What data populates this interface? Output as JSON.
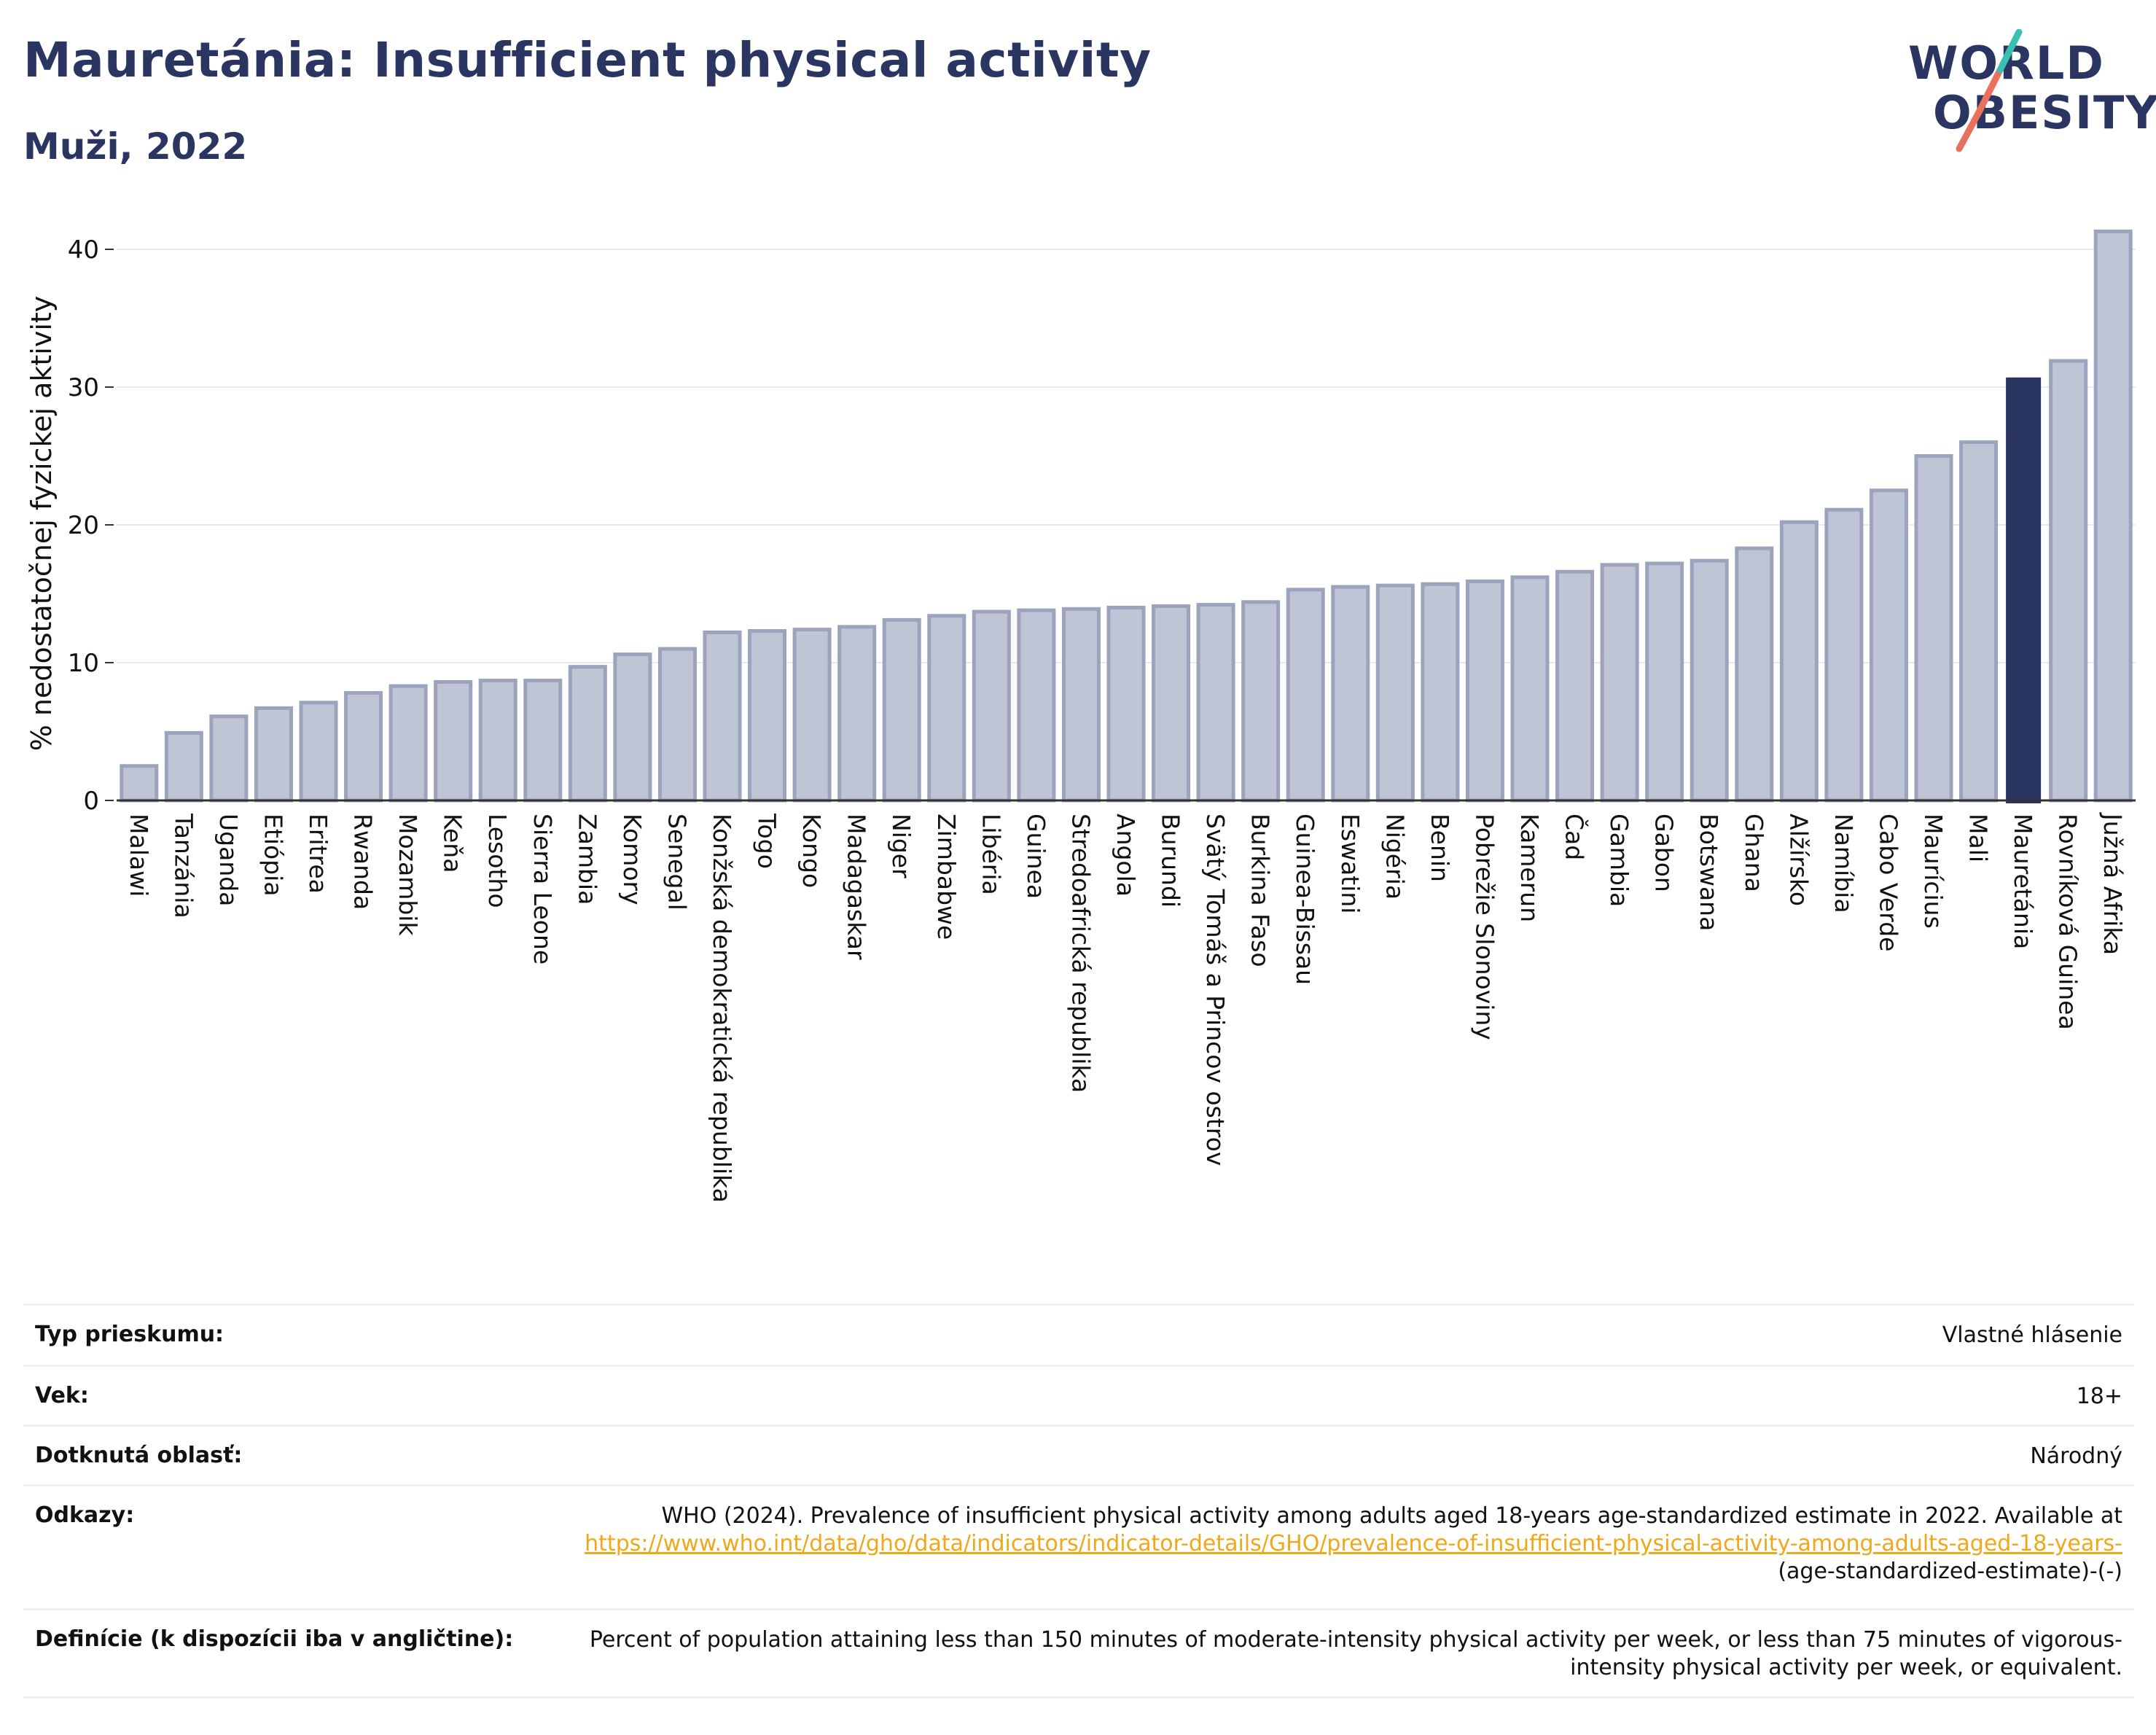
{
  "title": "Mauretánia: Insufficient physical activity",
  "subtitle": "Muži, 2022",
  "logo": {
    "line1": "WORLD",
    "line2": "OBESITY"
  },
  "colors": {
    "highlight": "#2b3561",
    "bar": "#c0c5d6",
    "bar_stroke": "#9ba3bd",
    "title": "#2b3561",
    "link": "#f0a81a"
  },
  "chart_data": {
    "type": "bar",
    "ylabel": "% nedostatočnej fyzickej aktivity",
    "ylim": [
      0,
      42
    ],
    "yticks": [
      0,
      10,
      20,
      30,
      40
    ],
    "grid": true,
    "highlight": "Mauretánia",
    "categories": [
      "Malawi",
      "Tanzánia",
      "Uganda",
      "Etiópia",
      "Eritrea",
      "Rwanda",
      "Mozambik",
      "Keňa",
      "Lesotho",
      "Sierra Leone",
      "Zambia",
      "Komory",
      "Senegal",
      "Konžská demokratická republika",
      "Togo",
      "Kongo",
      "Madagaskar",
      "Niger",
      "Zimbabwe",
      "Libéria",
      "Guinea",
      "Stredoafrická republika",
      "Angola",
      "Burundi",
      "Svätý Tomáš a Princov ostrov",
      "Burkina Faso",
      "Guinea-Bissau",
      "Eswatini",
      "Nigéria",
      "Benin",
      "Pobrežie Slonoviny",
      "Kamerun",
      "Čad",
      "Gambia",
      "Gabon",
      "Botswana",
      "Ghana",
      "Alžírsko",
      "Namíbia",
      "Cabo Verde",
      "Maurícius",
      "Mali",
      "Mauretánia",
      "Rovníková Guinea",
      "Južná Afrika"
    ],
    "values": [
      2.5,
      4.9,
      6.1,
      6.7,
      7.1,
      7.8,
      8.3,
      8.6,
      8.7,
      8.7,
      9.7,
      10.6,
      11.0,
      12.2,
      12.3,
      12.4,
      12.6,
      13.1,
      13.4,
      13.7,
      13.8,
      13.9,
      14.0,
      14.1,
      14.2,
      14.4,
      15.3,
      15.5,
      15.6,
      15.7,
      15.9,
      16.2,
      16.6,
      17.1,
      17.2,
      17.4,
      18.3,
      20.2,
      21.1,
      22.5,
      25.0,
      26.0,
      30.7,
      31.9,
      41.3
    ]
  },
  "table": {
    "survey_type": {
      "label": "Typ prieskumu:",
      "value": "Vlastné hlásenie"
    },
    "age": {
      "label": "Vek:",
      "value": "18+"
    },
    "area": {
      "label": "Dotknutá oblasť:",
      "value": "Národný"
    },
    "references": {
      "label": "Odkazy:",
      "text": "WHO (2024). Prevalence of insufficient physical activity among adults aged 18-years age-standardized estimate in 2022. Available at",
      "link": "https://www.who.int/data/gho/data/indicators/indicator-details/GHO/prevalence-of-insufficient-physical-activity-among-adults-aged-18-years-",
      "suffix": "(age-standardized-estimate)-(-)"
    },
    "definition": {
      "label": "Definície (k dispozícii iba v angličtine):",
      "value": "Percent of population attaining less than 150 minutes of moderate-intensity physical activity per week, or less than 75 minutes of vigorous-intensity physical activity per week, or equivalent."
    }
  }
}
